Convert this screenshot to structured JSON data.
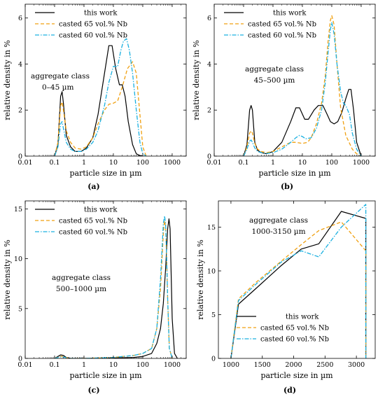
{
  "colors": {
    "this_work": "#000000",
    "nb65": "#f0a010",
    "nb60": "#1ab0e0"
  },
  "chart_data": [
    {
      "type": "line",
      "xscale": "log",
      "xlim": [
        0.01,
        3000
      ],
      "ylim": [
        0,
        6.6
      ],
      "xticks": [
        0.01,
        0.1,
        1,
        10,
        100,
        1000
      ],
      "xticklabels": [
        "0.01",
        "0.1",
        "1",
        "10",
        "100",
        "1000"
      ],
      "yticks": [
        0,
        2,
        4,
        6
      ],
      "yticklabels": [
        "0",
        "2",
        "4",
        "6"
      ],
      "xlabel": "particle size in µm",
      "ylabel": "relative density in %",
      "annotation": [
        "aggregate class",
        "0–45 µm"
      ],
      "panel_label": "(a)",
      "legend_position": "top-right",
      "series": [
        {
          "name": "this work",
          "style": "solid",
          "x": [
            0.1,
            0.13,
            0.16,
            0.18,
            0.2,
            0.25,
            0.35,
            0.5,
            0.8,
            1.2,
            2,
            3,
            5,
            7,
            9,
            12,
            16,
            20,
            25,
            32,
            45,
            60,
            80,
            100
          ],
          "y": [
            0.0,
            0.5,
            2.6,
            2.8,
            2.3,
            0.9,
            0.4,
            0.2,
            0.2,
            0.35,
            0.8,
            1.8,
            3.6,
            4.8,
            4.8,
            3.8,
            3.1,
            3.1,
            2.6,
            1.5,
            0.5,
            0.1,
            0.02,
            0.0
          ]
        },
        {
          "name": "casted 65 vol.% Nb",
          "style": "dashed",
          "x": [
            0.1,
            0.13,
            0.16,
            0.18,
            0.2,
            0.25,
            0.35,
            0.5,
            0.8,
            1.2,
            2,
            3,
            5,
            7,
            10,
            14,
            20,
            30,
            45,
            60,
            80,
            100,
            130
          ],
          "y": [
            0.0,
            0.6,
            2.2,
            2.35,
            2.0,
            1.1,
            0.6,
            0.35,
            0.3,
            0.4,
            0.8,
            1.4,
            2.0,
            2.25,
            2.3,
            2.4,
            3.0,
            3.8,
            4.1,
            3.6,
            1.8,
            0.4,
            0.0
          ]
        },
        {
          "name": "casted 60 vol.% Nb",
          "style": "dashdot",
          "x": [
            0.1,
            0.13,
            0.16,
            0.18,
            0.2,
            0.25,
            0.35,
            0.5,
            0.8,
            1.2,
            2,
            3,
            5,
            7,
            10,
            14,
            18,
            22,
            28,
            35,
            45,
            60,
            80,
            100,
            130
          ],
          "y": [
            0.0,
            0.4,
            1.4,
            1.5,
            1.2,
            0.6,
            0.3,
            0.2,
            0.2,
            0.3,
            0.6,
            1.1,
            2.2,
            3.2,
            3.9,
            3.9,
            4.6,
            5.0,
            5.1,
            4.6,
            3.6,
            2.0,
            0.6,
            0.1,
            0.0
          ]
        }
      ]
    },
    {
      "type": "line",
      "xscale": "log",
      "xlim": [
        0.01,
        3000
      ],
      "ylim": [
        0,
        6.6
      ],
      "xticks": [
        0.01,
        0.1,
        1,
        10,
        100,
        1000
      ],
      "xticklabels": [
        "0.01",
        "0.1",
        "1",
        "10",
        "100",
        "1000"
      ],
      "yticks": [
        0,
        2,
        4,
        6
      ],
      "yticklabels": [
        "0",
        "2",
        "4",
        "6"
      ],
      "xlabel": "particle size in µm",
      "ylabel": "relative density in %",
      "annotation": [
        "aggregate class",
        "45–500 µm"
      ],
      "panel_label": "(b)",
      "legend_position": "top-right",
      "series": [
        {
          "name": "this work",
          "style": "solid",
          "x": [
            0.1,
            0.13,
            0.16,
            0.18,
            0.2,
            0.24,
            0.3,
            0.4,
            0.6,
            1,
            2,
            4,
            6,
            8,
            12,
            16,
            25,
            35,
            50,
            70,
            90,
            120,
            160,
            220,
            300,
            380,
            450,
            550,
            700,
            1000
          ],
          "y": [
            0.0,
            0.5,
            2.0,
            2.2,
            2.0,
            0.6,
            0.25,
            0.15,
            0.1,
            0.2,
            0.6,
            1.5,
            2.1,
            2.1,
            1.6,
            1.6,
            2.0,
            2.2,
            2.2,
            1.8,
            1.5,
            1.4,
            1.5,
            1.9,
            2.5,
            2.9,
            2.9,
            2.0,
            0.6,
            0.0
          ]
        },
        {
          "name": "casted 65 vol.% Nb",
          "style": "dashed",
          "x": [
            0.1,
            0.13,
            0.16,
            0.18,
            0.2,
            0.24,
            0.3,
            0.4,
            0.6,
            1,
            2,
            4,
            6,
            10,
            15,
            20,
            30,
            45,
            60,
            75,
            90,
            100,
            120,
            150,
            200,
            300,
            500,
            700,
            1000
          ],
          "y": [
            0.0,
            0.4,
            1.0,
            1.1,
            1.0,
            0.55,
            0.3,
            0.2,
            0.15,
            0.2,
            0.4,
            0.6,
            0.6,
            0.55,
            0.6,
            0.8,
            1.4,
            2.3,
            3.5,
            5.0,
            5.9,
            6.1,
            5.7,
            4.0,
            2.1,
            0.9,
            0.3,
            0.1,
            0.0
          ]
        },
        {
          "name": "casted 60 vol.% Nb",
          "style": "dashdot",
          "x": [
            0.1,
            0.13,
            0.16,
            0.18,
            0.2,
            0.24,
            0.3,
            0.4,
            0.6,
            1,
            2,
            4,
            6,
            8,
            10,
            13,
            20,
            30,
            45,
            60,
            75,
            90,
            100,
            120,
            150,
            200,
            250,
            300,
            400,
            500,
            700,
            1000
          ],
          "y": [
            0.0,
            0.3,
            0.65,
            0.7,
            0.6,
            0.35,
            0.2,
            0.15,
            0.12,
            0.15,
            0.3,
            0.6,
            0.8,
            0.9,
            0.85,
            0.75,
            0.8,
            1.2,
            2.0,
            3.2,
            4.5,
            5.5,
            5.8,
            5.3,
            4.0,
            2.8,
            2.3,
            2.2,
            1.8,
            1.0,
            0.3,
            0.0
          ]
        }
      ]
    },
    {
      "type": "line",
      "xscale": "log",
      "xlim": [
        0.01,
        3000
      ],
      "ylim": [
        0,
        15.8
      ],
      "xticks": [
        0.01,
        0.1,
        1,
        10,
        100,
        1000
      ],
      "xticklabels": [
        "0.01",
        "0.1",
        "1",
        "10",
        "100",
        "1000"
      ],
      "yticks": [
        0,
        5,
        10,
        15
      ],
      "yticklabels": [
        "0",
        "5",
        "10",
        "15"
      ],
      "xlabel": "particle size in µm",
      "ylabel": "relative density in %",
      "annotation": [
        "aggregate class",
        "500–1000 µm"
      ],
      "panel_label": "(c)",
      "legend_position": "top-right",
      "series": [
        {
          "name": "this work",
          "style": "solid",
          "x": [
            0.1,
            0.13,
            0.16,
            0.2,
            0.25,
            0.35,
            1,
            10,
            50,
            100,
            200,
            300,
            400,
            500,
            600,
            700,
            780,
            850,
            900,
            1000,
            1200,
            1500
          ],
          "y": [
            0.0,
            0.2,
            0.35,
            0.3,
            0.1,
            0.0,
            0.0,
            0.05,
            0.1,
            0.2,
            0.5,
            1.5,
            3.0,
            5.5,
            9.0,
            13.0,
            14.0,
            13.0,
            10.0,
            4.0,
            0.5,
            0.0
          ]
        },
        {
          "name": "casted 65 vol.% Nb",
          "style": "dashed",
          "x": [
            0.1,
            0.15,
            0.2,
            0.3,
            1,
            10,
            50,
            100,
            200,
            300,
            400,
            500,
            550,
            600,
            650,
            700,
            800,
            1000
          ],
          "y": [
            0.0,
            0.2,
            0.2,
            0.0,
            0.0,
            0.1,
            0.3,
            0.5,
            1.0,
            3.0,
            7.0,
            12.5,
            13.8,
            13.2,
            10.0,
            6.0,
            1.0,
            0.0
          ]
        },
        {
          "name": "casted 60 vol.% Nb",
          "style": "dashdot",
          "x": [
            0.1,
            0.15,
            0.2,
            0.3,
            1,
            10,
            50,
            100,
            200,
            300,
            400,
            500,
            550,
            600,
            650,
            700,
            800,
            1000
          ],
          "y": [
            0.0,
            0.15,
            0.15,
            0.0,
            0.0,
            0.1,
            0.3,
            0.5,
            1.0,
            3.0,
            8.0,
            13.5,
            14.3,
            13.5,
            10.0,
            6.0,
            1.0,
            0.0
          ]
        }
      ]
    },
    {
      "type": "line",
      "xscale": "linear",
      "xlim": [
        800,
        3300
      ],
      "ylim": [
        0,
        18
      ],
      "xticks": [
        1000,
        1500,
        2000,
        2500,
        3000
      ],
      "xticklabels": [
        "1000",
        "1500",
        "2000",
        "2500",
        "3000"
      ],
      "yticks": [
        0,
        5,
        10,
        15
      ],
      "yticklabels": [
        "0",
        "5",
        "10",
        "15"
      ],
      "xlabel": "particle size in µm",
      "ylabel": "relative density in %",
      "annotation": [
        "aggregate class",
        "1000-3150 µm"
      ],
      "panel_label": "(d)",
      "legend_position": "bottom-right",
      "series": [
        {
          "name": "this work",
          "style": "solid",
          "x": [
            1000,
            1120,
            1400,
            1800,
            2120,
            2400,
            2760,
            3150,
            3150
          ],
          "y": [
            0.0,
            6.2,
            8.0,
            10.6,
            12.5,
            13.1,
            16.8,
            16.0,
            0.0
          ]
        },
        {
          "name": "casted 65 vol.% Nb",
          "style": "dashed",
          "x": [
            1000,
            1120,
            1400,
            1800,
            2120,
            2400,
            2760,
            3150,
            3150
          ],
          "y": [
            0.0,
            6.8,
            8.7,
            11.1,
            13.0,
            14.6,
            15.6,
            12.3,
            0.0
          ]
        },
        {
          "name": "casted 60 vol.% Nb",
          "style": "dashdot",
          "x": [
            1000,
            1120,
            1400,
            1800,
            2120,
            2400,
            2760,
            3150,
            3150
          ],
          "y": [
            0.0,
            6.6,
            8.5,
            11.0,
            12.3,
            11.6,
            15.0,
            17.6,
            0.0
          ]
        }
      ]
    }
  ]
}
